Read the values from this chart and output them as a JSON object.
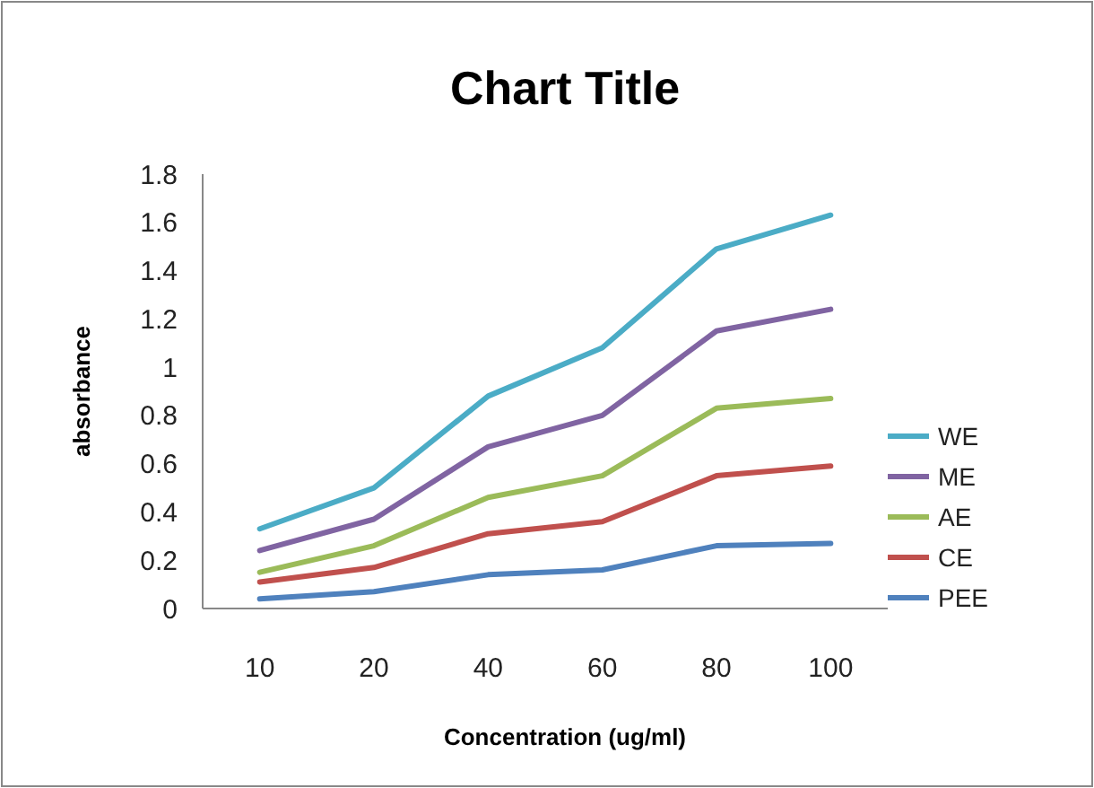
{
  "chart_data": {
    "type": "line",
    "title": "Chart Title",
    "xlabel": "Concentration (ug/ml)",
    "ylabel": "absorbance",
    "categories": [
      "10",
      "20",
      "40",
      "60",
      "80",
      "100"
    ],
    "ylim": [
      0,
      1.8
    ],
    "yticks": [
      0,
      {
        "value": 0.2,
        "label": "0.2"
      },
      {
        "value": 0.4,
        "label": "0.4"
      },
      {
        "value": 0.6,
        "label": "0.6"
      },
      {
        "value": 0.8,
        "label": "0.8"
      },
      1,
      {
        "value": 1.2,
        "label": "1.2"
      },
      {
        "value": 1.4,
        "label": "1.4"
      },
      {
        "value": 1.6,
        "label": "1.6"
      },
      {
        "value": 1.8,
        "label": "1.8"
      }
    ],
    "grid": false,
    "legend": "right",
    "marker": "none",
    "line_style": "solid",
    "series": [
      {
        "name": "WE",
        "color": "#4bacc6",
        "values": [
          0.33,
          0.5,
          0.88,
          1.08,
          1.49,
          1.63
        ]
      },
      {
        "name": "ME",
        "color": "#8064a2",
        "values": [
          0.24,
          0.37,
          0.67,
          0.8,
          1.15,
          1.24
        ]
      },
      {
        "name": "AE",
        "color": "#9bbb59",
        "values": [
          0.15,
          0.26,
          0.46,
          0.55,
          0.83,
          0.87
        ]
      },
      {
        "name": "CE",
        "color": "#c0504d",
        "values": [
          0.11,
          0.17,
          0.31,
          0.36,
          0.55,
          0.59
        ]
      },
      {
        "name": "PEE",
        "color": "#4f81bd",
        "values": [
          0.04,
          0.07,
          0.14,
          0.16,
          0.26,
          0.27
        ]
      }
    ]
  }
}
